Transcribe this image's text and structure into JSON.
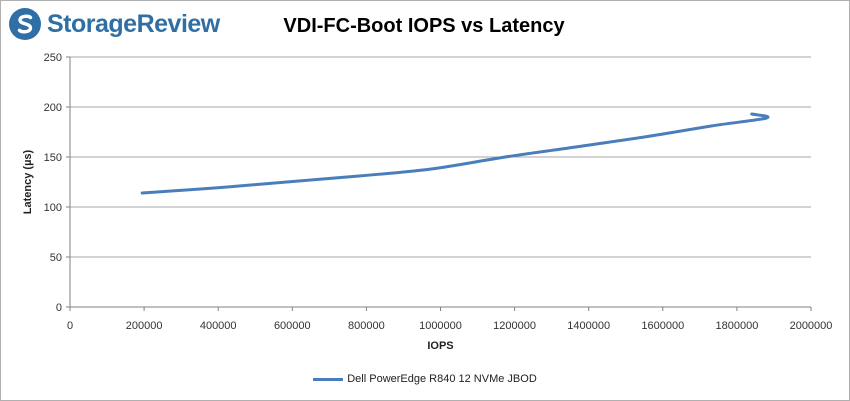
{
  "brand": {
    "name": "StorageReview"
  },
  "colors": {
    "series": "#4a7ebb",
    "grid": "#a6a6a6",
    "brand": "#2f6fa5"
  },
  "chart_data": {
    "type": "line",
    "title": "VDI-FC-Boot IOPS vs Latency",
    "xlabel": "IOPS",
    "ylabel": "Latency (µs)",
    "xlim": [
      0,
      2000000
    ],
    "ylim": [
      0,
      250
    ],
    "xticks": [
      0,
      200000,
      400000,
      600000,
      800000,
      1000000,
      1200000,
      1400000,
      1600000,
      1800000,
      2000000
    ],
    "yticks": [
      0,
      50,
      100,
      150,
      200,
      250
    ],
    "grid": true,
    "legend": "bottom",
    "series": [
      {
        "name": "Dell PowerEdge R840 12 NVMe JBOD",
        "x": [
          195000,
          390000,
          585000,
          780000,
          975000,
          1175000,
          1365000,
          1550000,
          1730000,
          1880000,
          1840000
        ],
        "y": [
          114,
          119,
          125,
          131,
          138,
          150,
          160,
          170,
          181,
          189,
          193
        ]
      }
    ]
  }
}
